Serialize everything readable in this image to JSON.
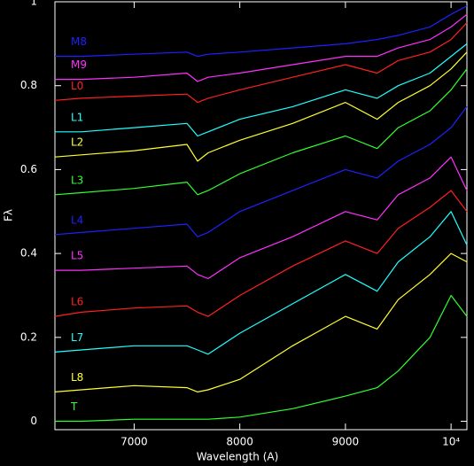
{
  "chart_data": {
    "type": "line",
    "xlabel": "Wavelength (A)",
    "ylabel": "Fλ",
    "xlim": [
      6250,
      10150
    ],
    "ylim": [
      -0.02,
      1.0
    ],
    "xticks": [
      7000,
      8000,
      9000,
      {
        "value": 10000,
        "label": "10⁴"
      }
    ],
    "yticks": [
      0,
      0.2,
      0.4,
      0.6,
      0.8,
      1
    ],
    "x": [
      6250,
      6500,
      7000,
      7500,
      7600,
      7700,
      8000,
      8500,
      9000,
      9300,
      9500,
      9800,
      10000,
      10150
    ],
    "series": [
      {
        "name": "M8",
        "color": "#2020ff",
        "values": [
          0.87,
          0.87,
          0.875,
          0.88,
          0.87,
          0.875,
          0.88,
          0.89,
          0.9,
          0.91,
          0.92,
          0.94,
          0.97,
          0.99
        ]
      },
      {
        "name": "M9",
        "color": "#ff30ff",
        "values": [
          0.815,
          0.815,
          0.82,
          0.83,
          0.81,
          0.82,
          0.83,
          0.85,
          0.87,
          0.87,
          0.89,
          0.91,
          0.94,
          0.97
        ]
      },
      {
        "name": "L0",
        "color": "#ff2020",
        "values": [
          0.765,
          0.77,
          0.775,
          0.78,
          0.76,
          0.77,
          0.79,
          0.82,
          0.85,
          0.83,
          0.86,
          0.88,
          0.91,
          0.95
        ]
      },
      {
        "name": "L1",
        "color": "#20ffff",
        "values": [
          0.69,
          0.69,
          0.7,
          0.71,
          0.68,
          0.69,
          0.72,
          0.75,
          0.79,
          0.77,
          0.8,
          0.83,
          0.87,
          0.9
        ]
      },
      {
        "name": "L2",
        "color": "#ffff30",
        "values": [
          0.63,
          0.635,
          0.645,
          0.66,
          0.62,
          0.64,
          0.67,
          0.71,
          0.76,
          0.72,
          0.76,
          0.8,
          0.84,
          0.88
        ]
      },
      {
        "name": "L3",
        "color": "#30ff30",
        "values": [
          0.54,
          0.545,
          0.555,
          0.57,
          0.54,
          0.55,
          0.59,
          0.64,
          0.68,
          0.65,
          0.7,
          0.74,
          0.79,
          0.84
        ]
      },
      {
        "name": "L4",
        "color": "#2020ff",
        "values": [
          0.445,
          0.45,
          0.46,
          0.47,
          0.44,
          0.45,
          0.5,
          0.55,
          0.6,
          0.58,
          0.62,
          0.66,
          0.7,
          0.75
        ]
      },
      {
        "name": "L5",
        "color": "#ff30ff",
        "values": [
          0.36,
          0.36,
          0.365,
          0.37,
          0.35,
          0.34,
          0.39,
          0.44,
          0.5,
          0.48,
          0.54,
          0.58,
          0.63,
          0.55
        ]
      },
      {
        "name": "L6",
        "color": "#ff2020",
        "values": [
          0.25,
          0.26,
          0.27,
          0.275,
          0.26,
          0.25,
          0.3,
          0.37,
          0.43,
          0.4,
          0.46,
          0.51,
          0.55,
          0.5
        ]
      },
      {
        "name": "L7",
        "color": "#20ffff",
        "values": [
          0.165,
          0.17,
          0.18,
          0.18,
          0.17,
          0.16,
          0.21,
          0.28,
          0.35,
          0.31,
          0.38,
          0.44,
          0.5,
          0.42
        ]
      },
      {
        "name": "L8",
        "color": "#ffff30",
        "values": [
          0.07,
          0.075,
          0.085,
          0.08,
          0.07,
          0.075,
          0.1,
          0.18,
          0.25,
          0.22,
          0.29,
          0.35,
          0.4,
          0.38
        ]
      },
      {
        "name": "T",
        "color": "#30ff30",
        "values": [
          0.0,
          0.0,
          0.005,
          0.005,
          0.005,
          0.005,
          0.01,
          0.03,
          0.06,
          0.08,
          0.12,
          0.2,
          0.3,
          0.25
        ]
      }
    ]
  }
}
